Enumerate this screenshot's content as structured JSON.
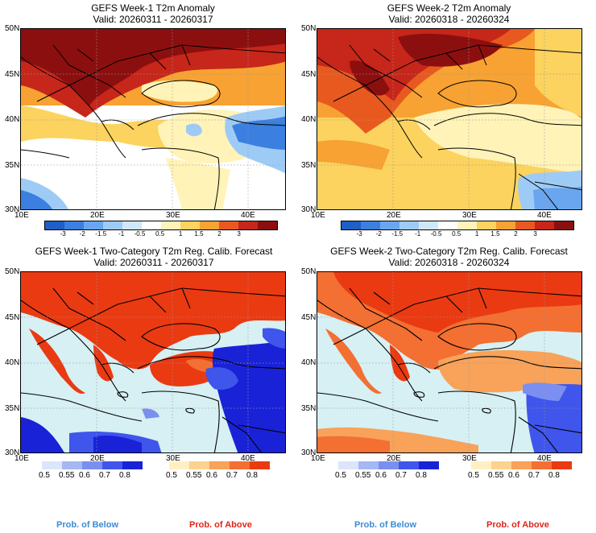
{
  "panels": {
    "a": {
      "title": "GEFS Week-1 T2m Anomaly",
      "valid": "Valid: 20260311 - 20260317"
    },
    "b": {
      "title": "GEFS Week-2 T2m Anomaly",
      "valid": "Valid: 20260318 - 20260324"
    },
    "c": {
      "title": "GEFS Week-1 Two-Category T2m Reg. Calib. Forecast",
      "valid": "Valid: 20260311 - 20260317"
    },
    "d": {
      "title": "GEFS Week-2 Two-Category T2m Reg. Calib. Forecast",
      "valid": "Valid: 20260318 - 20260324"
    }
  },
  "axes": {
    "lat": [
      "50N",
      "45N",
      "40N",
      "35N",
      "30N"
    ],
    "lon": [
      "10E",
      "20E",
      "30E",
      "40E"
    ]
  },
  "anomaly_colorbar": {
    "labels": [
      "-3",
      "-2",
      "-1.5",
      "-1",
      "-0.5",
      "0.5",
      "1",
      "1.5",
      "2",
      "3"
    ],
    "colors": [
      "#1f5fc8",
      "#3b7fe0",
      "#6aa6ef",
      "#9ecbf6",
      "#cfe7fb",
      "#ffffff",
      "#fff3b8",
      "#fbd35e",
      "#f7a232",
      "#e8591f",
      "#c7261b",
      "#8c0f0f"
    ]
  },
  "prob_colorbar": {
    "below_labels": [
      "0.5",
      "0.55",
      "0.6",
      "0.7",
      "0.8"
    ],
    "below_colors": [
      "#dce6fb",
      "#a6b8f3",
      "#7a8ff0",
      "#3f55eb",
      "#1a22d8"
    ],
    "above_labels": [
      "0.5",
      "0.55",
      "0.6",
      "0.7",
      "0.8"
    ],
    "above_colors": [
      "#fff0c4",
      "#fbd38f",
      "#f8a25a",
      "#f36f32",
      "#ea3a12"
    ]
  },
  "footer": {
    "below": "Prob. of Below",
    "above": "Prob. of Above",
    "below_color": "#3b8bd6",
    "above_color": "#e0251b"
  }
}
